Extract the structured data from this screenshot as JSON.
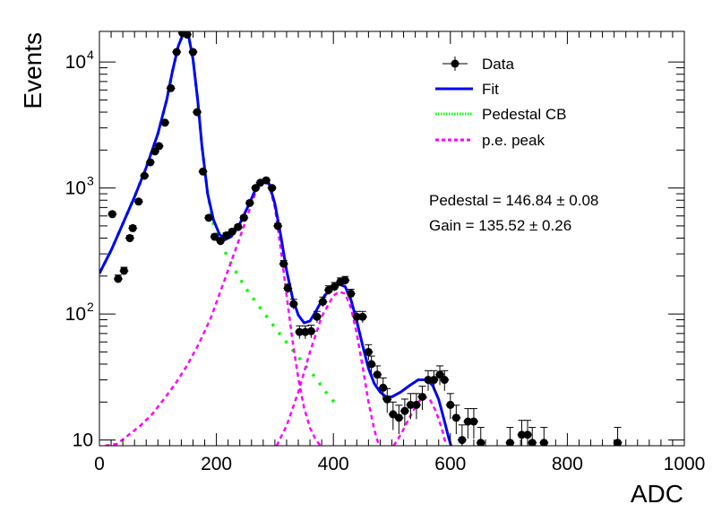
{
  "chart_data": {
    "type": "scatter",
    "xlabel": "ADC",
    "ylabel": "Events",
    "xlim": [
      0,
      1000
    ],
    "ylim": [
      9,
      17500
    ],
    "ylog": true,
    "x_ticks": [
      0,
      200,
      400,
      600,
      800,
      1000
    ],
    "x_tick_labels": [
      "0",
      "200",
      "400",
      "600",
      "800",
      "1000"
    ],
    "y_ticks": [
      10,
      100,
      1000,
      10000
    ],
    "y_tick_labels": [
      "10",
      "10",
      "10",
      "10"
    ],
    "y_tick_exponents": [
      "",
      "2",
      "3",
      "4"
    ],
    "legend_position": "top-right",
    "legend": [
      {
        "label": "Data",
        "style": "marker",
        "color": "#000000"
      },
      {
        "label": "Fit",
        "style": "solid",
        "color": "#0000ff"
      },
      {
        "label": "Pedestal CB",
        "style": "dotted",
        "color": "#00ff00"
      },
      {
        "label": "p.e. peak",
        "style": "dashed",
        "color": "#ff00ff"
      }
    ],
    "annotations": [
      "Pedestal = 146.84 ± 0.08",
      "Gain = 135.52 ± 0.26"
    ],
    "series": [
      {
        "name": "Data",
        "kind": "points",
        "color": "#000000",
        "points": [
          {
            "x": 22,
            "y": 620
          },
          {
            "x": 32,
            "y": 190
          },
          {
            "x": 42,
            "y": 220
          },
          {
            "x": 52,
            "y": 400
          },
          {
            "x": 57,
            "y": 480
          },
          {
            "x": 67,
            "y": 780
          },
          {
            "x": 77,
            "y": 1250
          },
          {
            "x": 87,
            "y": 1600
          },
          {
            "x": 95,
            "y": 1950
          },
          {
            "x": 102,
            "y": 2150
          },
          {
            "x": 112,
            "y": 3300
          },
          {
            "x": 122,
            "y": 6200
          },
          {
            "x": 132,
            "y": 12000
          },
          {
            "x": 142,
            "y": 17000
          },
          {
            "x": 150,
            "y": 16500
          },
          {
            "x": 160,
            "y": 12000
          },
          {
            "x": 167,
            "y": 4000
          },
          {
            "x": 177,
            "y": 1350
          },
          {
            "x": 187,
            "y": 580
          },
          {
            "x": 197,
            "y": 410
          },
          {
            "x": 207,
            "y": 380
          },
          {
            "x": 217,
            "y": 420
          },
          {
            "x": 227,
            "y": 450
          },
          {
            "x": 237,
            "y": 490
          },
          {
            "x": 247,
            "y": 580
          },
          {
            "x": 257,
            "y": 760
          },
          {
            "x": 267,
            "y": 1000
          },
          {
            "x": 275,
            "y": 1100
          },
          {
            "x": 285,
            "y": 1150
          },
          {
            "x": 295,
            "y": 1000
          },
          {
            "x": 305,
            "y": 500
          },
          {
            "x": 315,
            "y": 250
          },
          {
            "x": 322,
            "y": 160
          },
          {
            "x": 332,
            "y": 120
          },
          {
            "x": 342,
            "y": 72
          },
          {
            "x": 352,
            "y": 72
          },
          {
            "x": 362,
            "y": 73
          },
          {
            "x": 372,
            "y": 95
          },
          {
            "x": 382,
            "y": 125
          },
          {
            "x": 392,
            "y": 155
          },
          {
            "x": 402,
            "y": 165
          },
          {
            "x": 412,
            "y": 180
          },
          {
            "x": 420,
            "y": 185
          },
          {
            "x": 430,
            "y": 145
          },
          {
            "x": 440,
            "y": 95
          },
          {
            "x": 450,
            "y": 95
          },
          {
            "x": 460,
            "y": 50
          },
          {
            "x": 465,
            "y": 40
          },
          {
            "x": 475,
            "y": 33
          },
          {
            "x": 485,
            "y": 26
          },
          {
            "x": 492,
            "y": 21
          },
          {
            "x": 502,
            "y": 16
          },
          {
            "x": 512,
            "y": 15
          },
          {
            "x": 522,
            "y": 17
          },
          {
            "x": 532,
            "y": 19
          },
          {
            "x": 542,
            "y": 19
          },
          {
            "x": 552,
            "y": 22
          },
          {
            "x": 562,
            "y": 30
          },
          {
            "x": 572,
            "y": 30
          },
          {
            "x": 582,
            "y": 33
          },
          {
            "x": 590,
            "y": 30
          },
          {
            "x": 600,
            "y": 19
          },
          {
            "x": 610,
            "y": 15
          },
          {
            "x": 620,
            "y": 10
          },
          {
            "x": 630,
            "y": 14
          },
          {
            "x": 640,
            "y": 14
          },
          {
            "x": 652,
            "y": 9.5
          },
          {
            "x": 702,
            "y": 9.5
          },
          {
            "x": 722,
            "y": 11
          },
          {
            "x": 732,
            "y": 11
          },
          {
            "x": 740,
            "y": 9.5
          },
          {
            "x": 760,
            "y": 9.5
          },
          {
            "x": 886,
            "y": 9.5
          }
        ]
      },
      {
        "name": "Fit",
        "kind": "line",
        "color": "#0000ff",
        "points": [
          {
            "x": 0,
            "y": 210
          },
          {
            "x": 20,
            "y": 320
          },
          {
            "x": 40,
            "y": 520
          },
          {
            "x": 60,
            "y": 850
          },
          {
            "x": 80,
            "y": 1450
          },
          {
            "x": 100,
            "y": 2700
          },
          {
            "x": 115,
            "y": 5000
          },
          {
            "x": 125,
            "y": 8500
          },
          {
            "x": 135,
            "y": 13500
          },
          {
            "x": 145,
            "y": 17500
          },
          {
            "x": 152,
            "y": 16500
          },
          {
            "x": 160,
            "y": 10500
          },
          {
            "x": 168,
            "y": 5000
          },
          {
            "x": 175,
            "y": 2200
          },
          {
            "x": 185,
            "y": 900
          },
          {
            "x": 195,
            "y": 560
          },
          {
            "x": 205,
            "y": 430
          },
          {
            "x": 215,
            "y": 390
          },
          {
            "x": 225,
            "y": 410
          },
          {
            "x": 240,
            "y": 520
          },
          {
            "x": 255,
            "y": 730
          },
          {
            "x": 265,
            "y": 930
          },
          {
            "x": 275,
            "y": 1120
          },
          {
            "x": 283,
            "y": 1180
          },
          {
            "x": 290,
            "y": 1080
          },
          {
            "x": 300,
            "y": 750
          },
          {
            "x": 310,
            "y": 420
          },
          {
            "x": 320,
            "y": 220
          },
          {
            "x": 330,
            "y": 135
          },
          {
            "x": 340,
            "y": 98
          },
          {
            "x": 350,
            "y": 85
          },
          {
            "x": 360,
            "y": 88
          },
          {
            "x": 370,
            "y": 105
          },
          {
            "x": 385,
            "y": 140
          },
          {
            "x": 400,
            "y": 165
          },
          {
            "x": 410,
            "y": 172
          },
          {
            "x": 420,
            "y": 165
          },
          {
            "x": 430,
            "y": 130
          },
          {
            "x": 440,
            "y": 88
          },
          {
            "x": 450,
            "y": 56
          },
          {
            "x": 460,
            "y": 37
          },
          {
            "x": 470,
            "y": 28
          },
          {
            "x": 480,
            "y": 24
          },
          {
            "x": 490,
            "y": 22
          },
          {
            "x": 500,
            "y": 22
          },
          {
            "x": 515,
            "y": 24
          },
          {
            "x": 530,
            "y": 27
          },
          {
            "x": 545,
            "y": 30
          },
          {
            "x": 560,
            "y": 30
          },
          {
            "x": 570,
            "y": 27
          },
          {
            "x": 580,
            "y": 21
          },
          {
            "x": 590,
            "y": 14
          },
          {
            "x": 597,
            "y": 10.5
          },
          {
            "x": 601,
            "y": 9
          }
        ]
      },
      {
        "name": "Pedestal CB",
        "kind": "line",
        "color": "#00ff00",
        "points": [
          {
            "x": 0,
            "y": 210
          },
          {
            "x": 20,
            "y": 320
          },
          {
            "x": 40,
            "y": 520
          },
          {
            "x": 60,
            "y": 850
          },
          {
            "x": 80,
            "y": 1450
          },
          {
            "x": 100,
            "y": 2700
          },
          {
            "x": 115,
            "y": 5000
          },
          {
            "x": 125,
            "y": 8500
          },
          {
            "x": 135,
            "y": 13500
          },
          {
            "x": 145,
            "y": 17500
          },
          {
            "x": 152,
            "y": 16500
          },
          {
            "x": 160,
            "y": 10500
          },
          {
            "x": 168,
            "y": 5000
          },
          {
            "x": 175,
            "y": 2200
          },
          {
            "x": 185,
            "y": 900
          },
          {
            "x": 195,
            "y": 520
          },
          {
            "x": 205,
            "y": 380
          },
          {
            "x": 215,
            "y": 310
          },
          {
            "x": 230,
            "y": 230
          },
          {
            "x": 250,
            "y": 160
          },
          {
            "x": 270,
            "y": 120
          },
          {
            "x": 290,
            "y": 90
          },
          {
            "x": 310,
            "y": 68
          },
          {
            "x": 330,
            "y": 52
          },
          {
            "x": 350,
            "y": 40
          },
          {
            "x": 370,
            "y": 31
          },
          {
            "x": 390,
            "y": 23
          },
          {
            "x": 410,
            "y": 18
          }
        ]
      },
      {
        "name": "p.e. peak 1",
        "kind": "line",
        "color": "#ff00ff",
        "points": [
          {
            "x": 10,
            "y": 9
          },
          {
            "x": 30,
            "y": 9.3
          },
          {
            "x": 50,
            "y": 11
          },
          {
            "x": 70,
            "y": 13
          },
          {
            "x": 90,
            "y": 16
          },
          {
            "x": 110,
            "y": 21
          },
          {
            "x": 130,
            "y": 28
          },
          {
            "x": 150,
            "y": 39
          },
          {
            "x": 170,
            "y": 58
          },
          {
            "x": 190,
            "y": 92
          },
          {
            "x": 210,
            "y": 165
          },
          {
            "x": 230,
            "y": 300
          },
          {
            "x": 245,
            "y": 470
          },
          {
            "x": 255,
            "y": 640
          },
          {
            "x": 265,
            "y": 870
          },
          {
            "x": 275,
            "y": 1080
          },
          {
            "x": 283,
            "y": 1160
          },
          {
            "x": 290,
            "y": 1060
          },
          {
            "x": 300,
            "y": 700
          },
          {
            "x": 310,
            "y": 330
          },
          {
            "x": 320,
            "y": 140
          },
          {
            "x": 330,
            "y": 62
          },
          {
            "x": 340,
            "y": 31
          },
          {
            "x": 350,
            "y": 18
          },
          {
            "x": 360,
            "y": 12.5
          },
          {
            "x": 370,
            "y": 10
          },
          {
            "x": 378,
            "y": 9
          }
        ]
      },
      {
        "name": "p.e. peak 2",
        "kind": "line",
        "color": "#ff00ff",
        "points": [
          {
            "x": 303,
            "y": 9
          },
          {
            "x": 320,
            "y": 13
          },
          {
            "x": 340,
            "y": 24
          },
          {
            "x": 360,
            "y": 50
          },
          {
            "x": 380,
            "y": 95
          },
          {
            "x": 400,
            "y": 140
          },
          {
            "x": 410,
            "y": 150
          },
          {
            "x": 420,
            "y": 145
          },
          {
            "x": 430,
            "y": 112
          },
          {
            "x": 440,
            "y": 70
          },
          {
            "x": 450,
            "y": 38
          },
          {
            "x": 460,
            "y": 20
          },
          {
            "x": 470,
            "y": 12
          },
          {
            "x": 478,
            "y": 9
          }
        ]
      },
      {
        "name": "p.e. peak 3",
        "kind": "line",
        "color": "#ff00ff",
        "points": [
          {
            "x": 503,
            "y": 9
          },
          {
            "x": 515,
            "y": 11
          },
          {
            "x": 530,
            "y": 15
          },
          {
            "x": 545,
            "y": 20
          },
          {
            "x": 555,
            "y": 22
          },
          {
            "x": 565,
            "y": 21
          },
          {
            "x": 575,
            "y": 17
          },
          {
            "x": 585,
            "y": 12.5
          },
          {
            "x": 593,
            "y": 9
          }
        ]
      }
    ]
  }
}
